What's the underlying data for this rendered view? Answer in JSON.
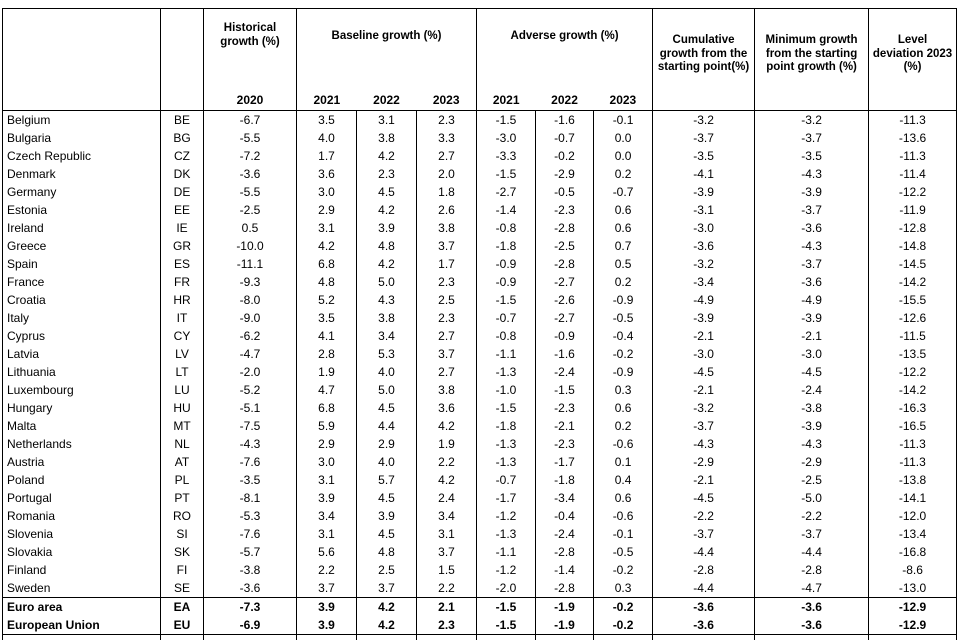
{
  "colors": {
    "border": "#000000",
    "text": "#000000",
    "page_background": "#ffffff"
  },
  "table": {
    "header": {
      "groups": [
        {
          "label": "Historical growth (%)",
          "years": [
            "2020"
          ]
        },
        {
          "label": "Baseline growth (%)",
          "years": [
            "2021",
            "2022",
            "2023"
          ]
        },
        {
          "label": "Adverse growth (%)",
          "years": [
            "2021",
            "2022",
            "2023"
          ]
        },
        {
          "label": "Cumulative growth from the starting point(%)",
          "years": []
        },
        {
          "label": "Minimum growth from the starting point growth (%)",
          "years": []
        },
        {
          "label": "Level deviation 2023 (%)",
          "years": []
        }
      ]
    },
    "rows": [
      {
        "country": "Belgium",
        "code": "BE",
        "bold": false,
        "values": [
          "-6.7",
          "3.5",
          "3.1",
          "2.3",
          "-1.5",
          "-1.6",
          "-0.1",
          "-3.2",
          "-3.2",
          "-11.3"
        ]
      },
      {
        "country": "Bulgaria",
        "code": "BG",
        "bold": false,
        "values": [
          "-5.5",
          "4.0",
          "3.8",
          "3.3",
          "-3.0",
          "-0.7",
          "0.0",
          "-3.7",
          "-3.7",
          "-13.6"
        ]
      },
      {
        "country": "Czech Republic",
        "code": "CZ",
        "bold": false,
        "values": [
          "-7.2",
          "1.7",
          "4.2",
          "2.7",
          "-3.3",
          "-0.2",
          "0.0",
          "-3.5",
          "-3.5",
          "-11.3"
        ]
      },
      {
        "country": "Denmark",
        "code": "DK",
        "bold": false,
        "values": [
          "-3.6",
          "3.6",
          "2.3",
          "2.0",
          "-1.5",
          "-2.9",
          "0.2",
          "-4.1",
          "-4.3",
          "-11.4"
        ]
      },
      {
        "country": "Germany",
        "code": "DE",
        "bold": false,
        "values": [
          "-5.5",
          "3.0",
          "4.5",
          "1.8",
          "-2.7",
          "-0.5",
          "-0.7",
          "-3.9",
          "-3.9",
          "-12.2"
        ]
      },
      {
        "country": "Estonia",
        "code": "EE",
        "bold": false,
        "values": [
          "-2.5",
          "2.9",
          "4.2",
          "2.6",
          "-1.4",
          "-2.3",
          "0.6",
          "-3.1",
          "-3.7",
          "-11.9"
        ]
      },
      {
        "country": "Ireland",
        "code": "IE",
        "bold": false,
        "values": [
          "0.5",
          "3.1",
          "3.9",
          "3.8",
          "-0.8",
          "-2.8",
          "0.6",
          "-3.0",
          "-3.6",
          "-12.8"
        ]
      },
      {
        "country": "Greece",
        "code": "GR",
        "bold": false,
        "values": [
          "-10.0",
          "4.2",
          "4.8",
          "3.7",
          "-1.8",
          "-2.5",
          "0.7",
          "-3.6",
          "-4.3",
          "-14.8"
        ]
      },
      {
        "country": "Spain",
        "code": "ES",
        "bold": false,
        "values": [
          "-11.1",
          "6.8",
          "4.2",
          "1.7",
          "-0.9",
          "-2.8",
          "0.5",
          "-3.2",
          "-3.7",
          "-14.5"
        ]
      },
      {
        "country": "France",
        "code": "FR",
        "bold": false,
        "values": [
          "-9.3",
          "4.8",
          "5.0",
          "2.3",
          "-0.9",
          "-2.7",
          "0.2",
          "-3.4",
          "-3.6",
          "-14.2"
        ]
      },
      {
        "country": "Croatia",
        "code": "HR",
        "bold": false,
        "values": [
          "-8.0",
          "5.2",
          "4.3",
          "2.5",
          "-1.5",
          "-2.6",
          "-0.9",
          "-4.9",
          "-4.9",
          "-15.5"
        ]
      },
      {
        "country": "Italy",
        "code": "IT",
        "bold": false,
        "values": [
          "-9.0",
          "3.5",
          "3.8",
          "2.3",
          "-0.7",
          "-2.7",
          "-0.5",
          "-3.9",
          "-3.9",
          "-12.6"
        ]
      },
      {
        "country": "Cyprus",
        "code": "CY",
        "bold": false,
        "values": [
          "-6.2",
          "4.1",
          "3.4",
          "2.7",
          "-0.8",
          "-0.9",
          "-0.4",
          "-2.1",
          "-2.1",
          "-11.5"
        ]
      },
      {
        "country": "Latvia",
        "code": "LV",
        "bold": false,
        "values": [
          "-4.7",
          "2.8",
          "5.3",
          "3.7",
          "-1.1",
          "-1.6",
          "-0.2",
          "-3.0",
          "-3.0",
          "-13.5"
        ]
      },
      {
        "country": "Lithuania",
        "code": "LT",
        "bold": false,
        "values": [
          "-2.0",
          "1.9",
          "4.0",
          "2.7",
          "-1.3",
          "-2.4",
          "-0.9",
          "-4.5",
          "-4.5",
          "-12.2"
        ]
      },
      {
        "country": "Luxembourg",
        "code": "LU",
        "bold": false,
        "values": [
          "-5.2",
          "4.7",
          "5.0",
          "3.8",
          "-1.0",
          "-1.5",
          "0.3",
          "-2.1",
          "-2.4",
          "-14.2"
        ]
      },
      {
        "country": "Hungary",
        "code": "HU",
        "bold": false,
        "values": [
          "-5.1",
          "6.8",
          "4.5",
          "3.6",
          "-1.5",
          "-2.3",
          "0.6",
          "-3.2",
          "-3.8",
          "-16.3"
        ]
      },
      {
        "country": "Malta",
        "code": "MT",
        "bold": false,
        "values": [
          "-7.5",
          "5.9",
          "4.4",
          "4.2",
          "-1.8",
          "-2.1",
          "0.2",
          "-3.7",
          "-3.9",
          "-16.5"
        ]
      },
      {
        "country": "Netherlands",
        "code": "NL",
        "bold": false,
        "values": [
          "-4.3",
          "2.9",
          "2.9",
          "1.9",
          "-1.3",
          "-2.3",
          "-0.6",
          "-4.3",
          "-4.3",
          "-11.3"
        ]
      },
      {
        "country": "Austria",
        "code": "AT",
        "bold": false,
        "values": [
          "-7.6",
          "3.0",
          "4.0",
          "2.2",
          "-1.3",
          "-1.7",
          "0.1",
          "-2.9",
          "-2.9",
          "-11.3"
        ]
      },
      {
        "country": "Poland",
        "code": "PL",
        "bold": false,
        "values": [
          "-3.5",
          "3.1",
          "5.7",
          "4.2",
          "-0.7",
          "-1.8",
          "0.4",
          "-2.1",
          "-2.5",
          "-13.8"
        ]
      },
      {
        "country": "Portugal",
        "code": "PT",
        "bold": false,
        "values": [
          "-8.1",
          "3.9",
          "4.5",
          "2.4",
          "-1.7",
          "-3.4",
          "0.6",
          "-4.5",
          "-5.0",
          "-14.1"
        ]
      },
      {
        "country": "Romania",
        "code": "RO",
        "bold": false,
        "values": [
          "-5.3",
          "3.4",
          "3.9",
          "3.4",
          "-1.2",
          "-0.4",
          "-0.6",
          "-2.2",
          "-2.2",
          "-12.0"
        ]
      },
      {
        "country": "Slovenia",
        "code": "SI",
        "bold": false,
        "values": [
          "-7.6",
          "3.1",
          "4.5",
          "3.1",
          "-1.3",
          "-2.4",
          "-0.1",
          "-3.7",
          "-3.7",
          "-13.4"
        ]
      },
      {
        "country": "Slovakia",
        "code": "SK",
        "bold": false,
        "values": [
          "-5.7",
          "5.6",
          "4.8",
          "3.7",
          "-1.1",
          "-2.8",
          "-0.5",
          "-4.4",
          "-4.4",
          "-16.8"
        ]
      },
      {
        "country": "Finland",
        "code": "FI",
        "bold": false,
        "values": [
          "-3.8",
          "2.2",
          "2.5",
          "1.5",
          "-1.2",
          "-1.4",
          "-0.2",
          "-2.8",
          "-2.8",
          "-8.6"
        ]
      },
      {
        "country": "Sweden",
        "code": "SE",
        "bold": false,
        "values": [
          "-3.6",
          "3.7",
          "3.7",
          "2.2",
          "-2.0",
          "-2.8",
          "0.3",
          "-4.4",
          "-4.7",
          "-13.0"
        ]
      },
      {
        "country": "Euro area",
        "code": "EA",
        "bold": true,
        "values": [
          "-7.3",
          "3.9",
          "4.2",
          "2.1",
          "-1.5",
          "-1.9",
          "-0.2",
          "-3.6",
          "-3.6",
          "-12.9"
        ]
      },
      {
        "country": "European Union",
        "code": "EU",
        "bold": true,
        "values": [
          "-6.9",
          "3.9",
          "4.2",
          "2.3",
          "-1.5",
          "-1.9",
          "-0.2",
          "-3.6",
          "-3.6",
          "-12.9"
        ]
      }
    ]
  }
}
